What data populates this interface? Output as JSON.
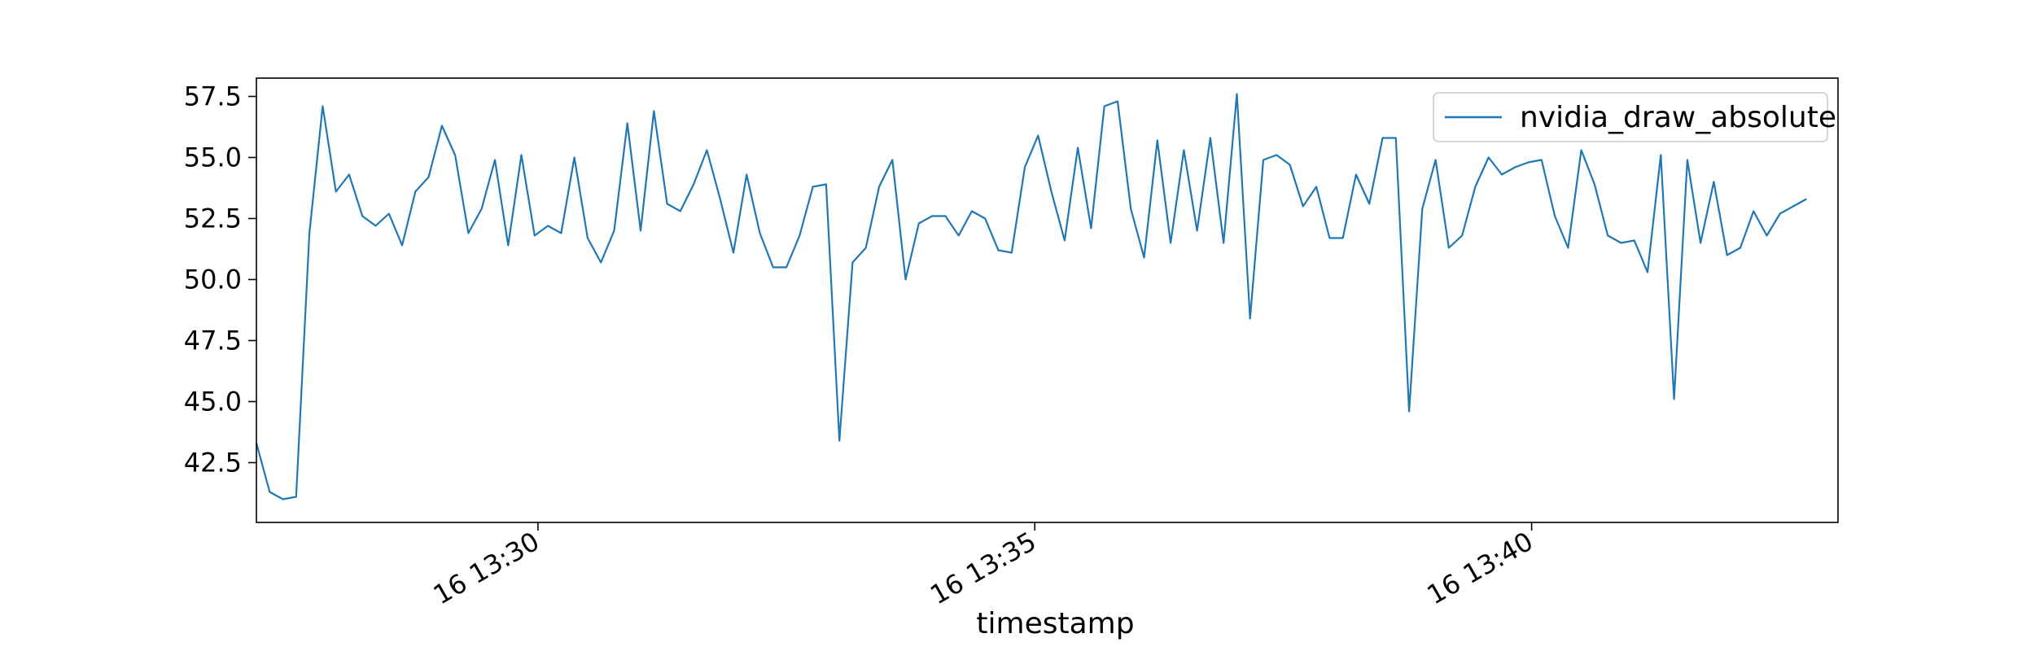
{
  "chart_data": {
    "type": "line",
    "title": "",
    "xlabel": "timestamp",
    "ylabel": "",
    "x_ticks": [
      {
        "value": "16 13:30",
        "label": "16 13:30"
      },
      {
        "value": "16 13:35",
        "label": "16 13:35"
      },
      {
        "value": "16 13:40",
        "label": "16 13:40"
      }
    ],
    "y_ticks": [
      42.5,
      45.0,
      47.5,
      50.0,
      52.5,
      55.0,
      57.5
    ],
    "xlim": [
      "16 13:27:10",
      "16 13:43:05"
    ],
    "ylim": [
      40.05,
      58.25
    ],
    "grid": false,
    "legend_position": "top-right",
    "colors": {
      "series": "#1f77b4",
      "axes": "#000000",
      "legend_border": "#cccccc"
    },
    "series": [
      {
        "name": "nvidia_draw_absolute",
        "x_start": "16 13:27:10",
        "x_step_seconds": 8,
        "values": [
          43.3,
          41.3,
          41.0,
          41.1,
          51.9,
          57.1,
          53.6,
          54.3,
          52.6,
          52.2,
          52.7,
          51.4,
          53.6,
          54.2,
          56.3,
          55.1,
          51.9,
          52.9,
          54.9,
          51.4,
          55.1,
          51.8,
          52.2,
          51.9,
          55.0,
          51.7,
          50.7,
          52.0,
          56.4,
          52.0,
          56.9,
          53.1,
          52.8,
          53.9,
          55.3,
          53.3,
          51.1,
          54.3,
          51.9,
          50.5,
          50.5,
          51.8,
          53.8,
          53.9,
          43.4,
          50.7,
          51.3,
          53.8,
          54.9,
          50.0,
          52.3,
          52.6,
          52.6,
          51.8,
          52.8,
          52.5,
          51.2,
          51.1,
          54.6,
          55.9,
          53.6,
          51.6,
          55.4,
          52.1,
          57.1,
          57.3,
          52.9,
          50.9,
          55.7,
          51.5,
          55.3,
          52.0,
          55.8,
          51.5,
          57.6,
          48.4,
          54.9,
          55.1,
          54.7,
          53.0,
          53.8,
          51.7,
          51.7,
          54.3,
          53.1,
          55.8,
          55.8,
          44.6,
          52.9,
          54.9,
          51.3,
          51.8,
          53.8,
          55.0,
          54.3,
          54.6,
          54.8,
          54.9,
          52.6,
          51.3,
          55.3,
          53.9,
          51.8,
          51.5,
          51.6,
          50.3,
          55.1,
          45.1,
          54.9,
          51.5,
          54.0,
          51.0,
          51.3,
          52.8,
          51.8,
          52.7,
          53.0,
          53.3
        ]
      }
    ]
  }
}
